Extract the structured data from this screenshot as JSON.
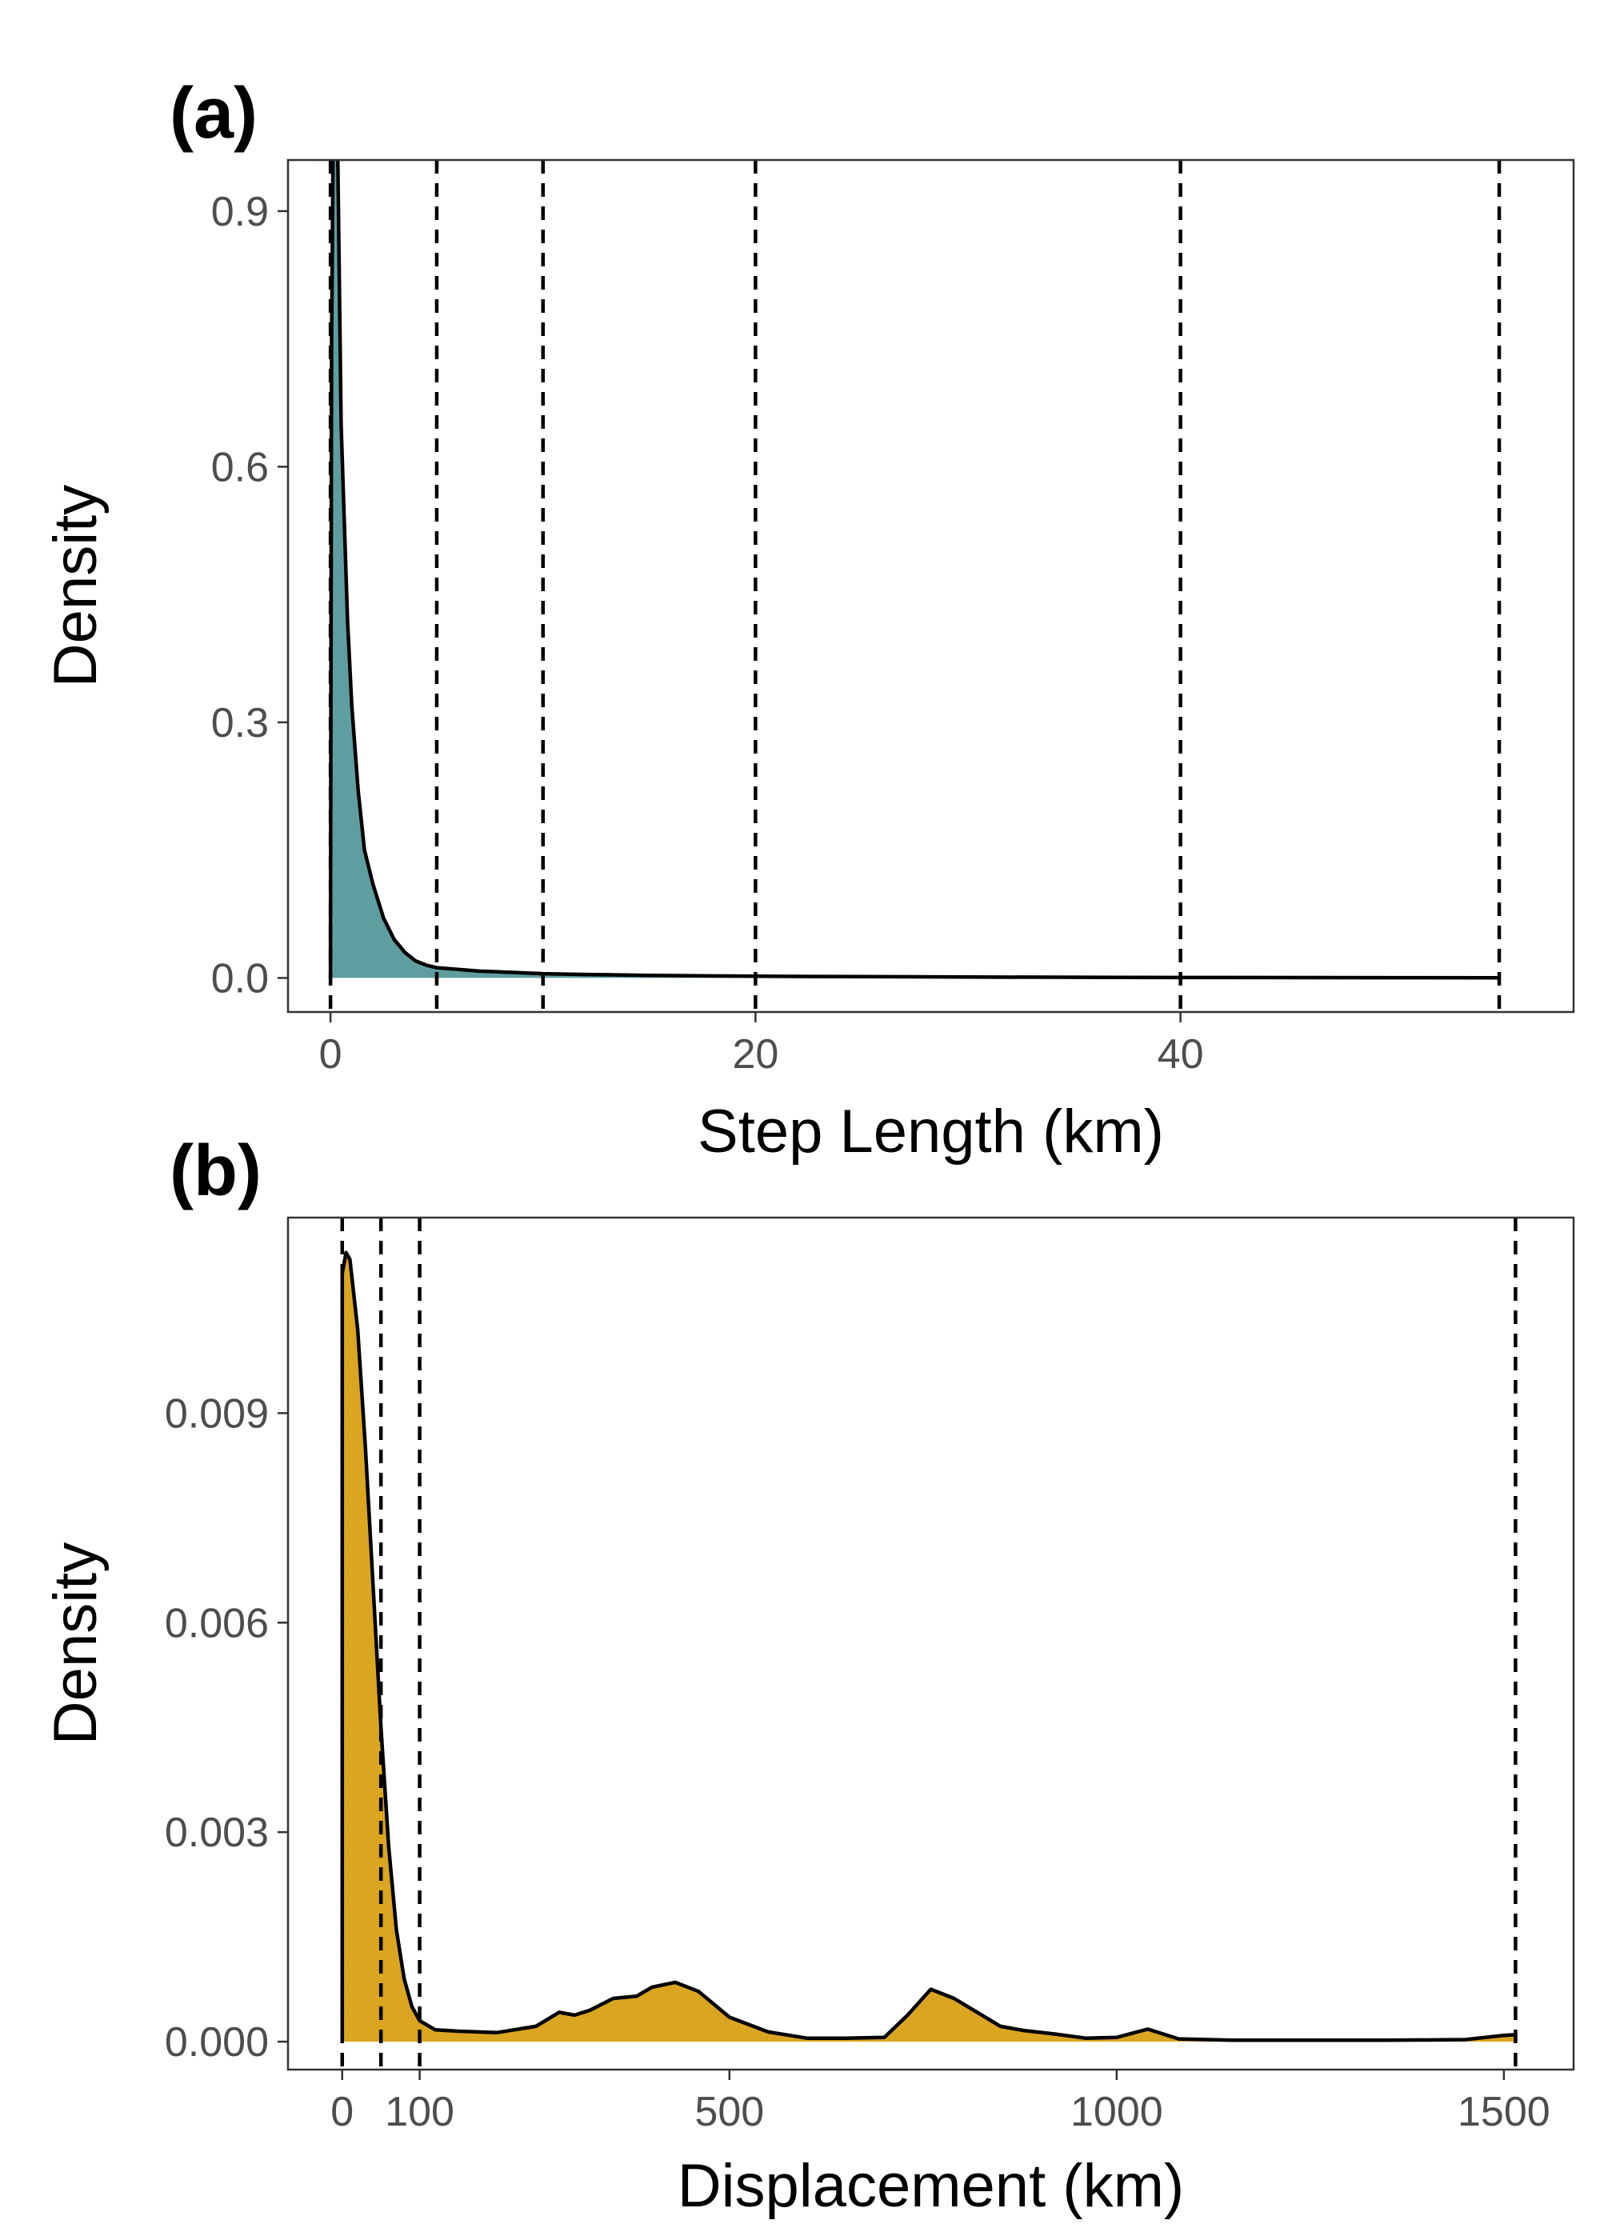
{
  "chart_data": [
    {
      "type": "area",
      "panel_label": "(a)",
      "xlabel": "Step Length (km)",
      "ylabel": "Density",
      "xlim": [
        -2,
        58.5
      ],
      "ylim": [
        -0.04,
        0.96
      ],
      "xticks": [
        0,
        20,
        40
      ],
      "yticks": [
        0.0,
        0.3,
        0.6,
        0.9
      ],
      "ytick_labels": [
        "0.0",
        "0.3",
        "0.6",
        "0.9"
      ],
      "fill_color": "#5F9EA0",
      "grid": false,
      "vlines": [
        0,
        5,
        10,
        20,
        40,
        55
      ],
      "series": [
        {
          "x": [
            0,
            0.05,
            0.1,
            0.15,
            0.2,
            0.3,
            0.5,
            0.8,
            1.0,
            1.3,
            1.6,
            2.0,
            2.5,
            3.0,
            3.5,
            4.0,
            4.5,
            5.0,
            6.0,
            7.0,
            8.0,
            10.0,
            12.0,
            15.0,
            20.0,
            25.0,
            30.0,
            40.0,
            50.0,
            55.0
          ],
          "y": [
            0.03,
            0.75,
            0.9,
            1.1,
            1.08,
            1.05,
            0.65,
            0.42,
            0.32,
            0.22,
            0.15,
            0.11,
            0.07,
            0.045,
            0.03,
            0.02,
            0.015,
            0.012,
            0.01,
            0.008,
            0.007,
            0.005,
            0.004,
            0.003,
            0.002,
            0.0015,
            0.001,
            0.0005,
            0.0003,
            0.0002
          ]
        }
      ]
    },
    {
      "type": "area",
      "panel_label": "(b)",
      "xlabel": "Displacement (km)",
      "ylabel": "Density",
      "xlim": [
        -70,
        1590
      ],
      "ylim": [
        -0.0004,
        0.0118
      ],
      "xticks": [
        0,
        100,
        500,
        1000,
        1500
      ],
      "yticks": [
        0.0,
        0.003,
        0.006,
        0.009
      ],
      "ytick_labels": [
        "0.000",
        "0.003",
        "0.006",
        "0.009"
      ],
      "fill_color": "#DAA520",
      "grid": false,
      "vlines": [
        0,
        50,
        100,
        1515
      ],
      "series": [
        {
          "x": [
            0,
            5,
            10,
            20,
            30,
            40,
            50,
            60,
            70,
            80,
            90,
            100,
            120,
            150,
            200,
            250,
            280,
            300,
            320,
            350,
            380,
            400,
            430,
            460,
            500,
            550,
            600,
            650,
            700,
            730,
            760,
            790,
            820,
            850,
            880,
            920,
            960,
            1000,
            1040,
            1080,
            1150,
            1250,
            1350,
            1450,
            1500,
            1515
          ],
          "y": [
            0.011,
            0.0113,
            0.0112,
            0.0102,
            0.0085,
            0.0065,
            0.0045,
            0.0028,
            0.0016,
            0.0009,
            0.0005,
            0.0003,
            0.00017,
            0.00015,
            0.00013,
            0.00022,
            0.00042,
            0.00038,
            0.00045,
            0.00062,
            0.00065,
            0.00078,
            0.00085,
            0.00072,
            0.00035,
            0.00014,
            5e-05,
            5e-05,
            6e-05,
            0.00038,
            0.00075,
            0.00062,
            0.00042,
            0.00022,
            0.00016,
            0.00011,
            5e-05,
            6e-05,
            0.00018,
            4e-05,
            2e-05,
            2e-05,
            2e-05,
            3e-05,
            9e-05,
            0.0001
          ]
        }
      ]
    }
  ]
}
